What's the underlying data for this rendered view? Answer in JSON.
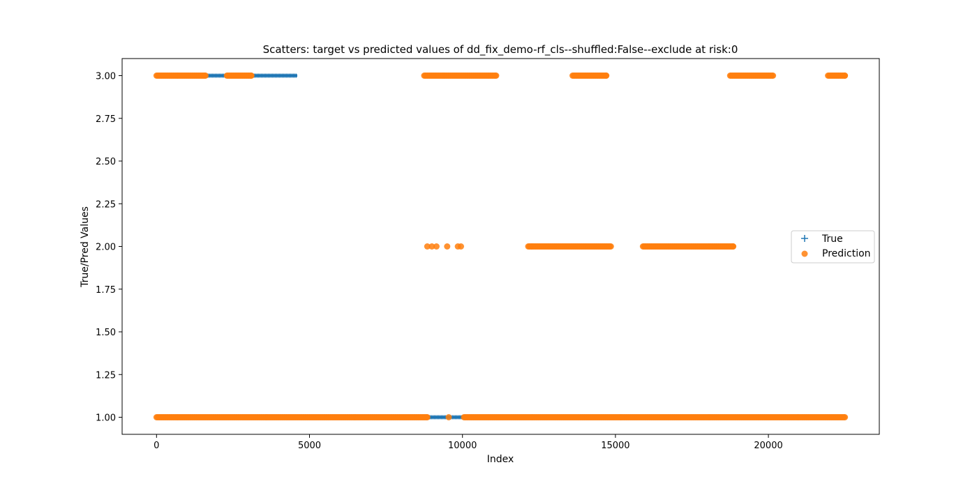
{
  "chart_data": {
    "type": "scatter",
    "title": "Scatters: target vs predicted values of dd_fix_demo-rf_cls--shuffled:False--exclude at risk:0",
    "xlabel": "Index",
    "ylabel": "True/Pred Values",
    "xlim": [
      -1125,
      23625
    ],
    "ylim": [
      0.9,
      3.1
    ],
    "x_ticks": [
      0,
      5000,
      10000,
      15000,
      20000
    ],
    "x_tick_labels": [
      "0",
      "5000",
      "10000",
      "15000",
      "20000"
    ],
    "y_ticks": [
      1.0,
      1.25,
      1.5,
      1.75,
      2.0,
      2.25,
      2.5,
      2.75,
      3.0
    ],
    "y_tick_labels": [
      "1.00",
      "1.25",
      "1.50",
      "1.75",
      "2.00",
      "2.25",
      "2.50",
      "2.75",
      "3.00"
    ],
    "grid": false,
    "legend_position": "center-right",
    "series": [
      {
        "name": "True",
        "marker": "+",
        "color": "#1f77b4",
        "segments": [
          {
            "y": 1,
            "x_start": 0,
            "x_end": 22499
          },
          {
            "y": 3,
            "x_start": 0,
            "x_end": 4600
          }
        ]
      },
      {
        "name": "Prediction",
        "marker": "o",
        "color": "#ff7f0e",
        "segments": [
          {
            "y": 3,
            "x_start": 0,
            "x_end": 1600
          },
          {
            "y": 3,
            "x_start": 2300,
            "x_end": 3100
          },
          {
            "y": 3,
            "x_start": 8750,
            "x_end": 11100
          },
          {
            "y": 3,
            "x_start": 13600,
            "x_end": 14700
          },
          {
            "y": 3,
            "x_start": 18750,
            "x_end": 20150
          },
          {
            "y": 3,
            "x_start": 21950,
            "x_end": 22500
          },
          {
            "y": 2,
            "x_start": 12150,
            "x_end": 14850
          },
          {
            "y": 2,
            "x_start": 15900,
            "x_end": 18850
          },
          {
            "y": 1,
            "x_start": 0,
            "x_end": 8850
          },
          {
            "y": 1,
            "x_start": 10050,
            "x_end": 22500
          }
        ],
        "points": [
          {
            "x": 8850,
            "y": 2
          },
          {
            "x": 9000,
            "y": 2
          },
          {
            "x": 9150,
            "y": 2
          },
          {
            "x": 9500,
            "y": 2
          },
          {
            "x": 9850,
            "y": 2
          },
          {
            "x": 9950,
            "y": 2
          },
          {
            "x": 9550,
            "y": 1
          }
        ]
      }
    ]
  }
}
